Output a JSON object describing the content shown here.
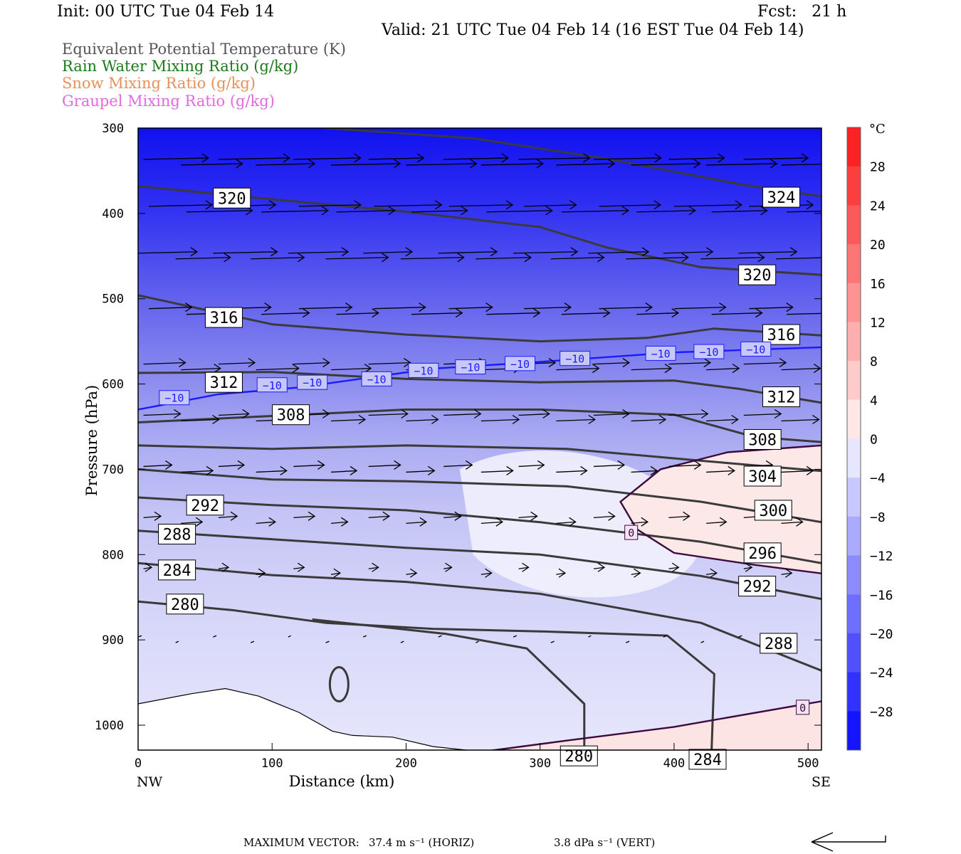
{
  "header": {
    "init": "Init: 00 UTC Tue 04 Feb 14",
    "fcst": "Fcst:   21 h",
    "valid": "Valid: 21 UTC Tue 04 Feb 14 (16 EST Tue 04 Feb 14)"
  },
  "legend": [
    {
      "label": "Equivalent Potential Temperature (K)",
      "color": "#555555"
    },
    {
      "label": "Rain Water Mixing Ratio (g/kg)",
      "color": "#1b7a1b"
    },
    {
      "label": "Snow Mixing Ratio (g/kg)",
      "color": "#e8915a"
    },
    {
      "label": "Graupel Mixing Ratio (g/kg)",
      "color": "#e06ae0"
    }
  ],
  "footer": {
    "max_vector_label": "MAXIMUM VECTOR:",
    "horiz": "37.4 m s⁻¹ (HORIZ)",
    "vert": "3.8 dPa s⁻¹ (VERT)"
  },
  "chart_data": {
    "type": "cross-section",
    "xlabel": "Distance (km)",
    "ylabel": "Pressure (hPa)",
    "xlim": [
      0,
      510
    ],
    "ylim": [
      1030,
      300
    ],
    "x_ticks": [
      0,
      100,
      200,
      300,
      400,
      500
    ],
    "y_ticks": [
      300,
      400,
      500,
      600,
      700,
      800,
      900,
      1000
    ],
    "x_left_label": "NW",
    "x_right_label": "SE",
    "colorbar": {
      "unit": "°C",
      "tick_labels": [
        "28",
        "24",
        "20",
        "16",
        "12",
        "8",
        "4",
        "0",
        "−4",
        "−8",
        "−12",
        "−16",
        "−20",
        "−24",
        "−28"
      ],
      "tick_values": [
        28,
        24,
        20,
        16,
        12,
        8,
        4,
        0,
        -4,
        -8,
        -12,
        -16,
        -20,
        -24,
        -28
      ],
      "range": [
        -32,
        32
      ]
    },
    "theta_e_contours": [
      {
        "value": 324,
        "points": [
          [
            140,
            300
          ],
          [
            250,
            312
          ],
          [
            350,
            336
          ],
          [
            450,
            366
          ],
          [
            510,
            380
          ]
        ],
        "labels": [
          {
            "x": 480,
            "p": 381,
            "text": "324"
          }
        ]
      },
      {
        "value": 320,
        "points": [
          [
            0,
            368
          ],
          [
            90,
            382
          ],
          [
            200,
            398
          ],
          [
            300,
            416
          ],
          [
            350,
            440
          ],
          [
            420,
            463
          ],
          [
            510,
            472
          ]
        ],
        "labels": [
          {
            "x": 70,
            "p": 382,
            "text": "320"
          },
          {
            "x": 462,
            "p": 472,
            "text": "320"
          }
        ]
      },
      {
        "value": 316,
        "points": [
          [
            0,
            496
          ],
          [
            100,
            530
          ],
          [
            200,
            542
          ],
          [
            300,
            550
          ],
          [
            380,
            546
          ],
          [
            430,
            535
          ],
          [
            510,
            543
          ]
        ],
        "labels": [
          {
            "x": 64,
            "p": 522,
            "text": "316"
          },
          {
            "x": 480,
            "p": 542,
            "text": "316"
          }
        ]
      },
      {
        "value": 312,
        "points": [
          [
            0,
            587
          ],
          [
            100,
            586
          ],
          [
            200,
            594
          ],
          [
            300,
            598
          ],
          [
            400,
            596
          ],
          [
            450,
            606
          ],
          [
            510,
            622
          ]
        ],
        "labels": [
          {
            "x": 64,
            "p": 598,
            "text": "312"
          },
          {
            "x": 480,
            "p": 615,
            "text": "312"
          }
        ]
      },
      {
        "value": 308,
        "points": [
          [
            0,
            645
          ],
          [
            120,
            636
          ],
          [
            200,
            630
          ],
          [
            300,
            630
          ],
          [
            400,
            636
          ],
          [
            460,
            662
          ],
          [
            510,
            668
          ]
        ],
        "labels": [
          {
            "x": 114,
            "p": 636,
            "text": "308"
          },
          {
            "x": 466,
            "p": 665,
            "text": "308"
          }
        ]
      },
      {
        "value": 304,
        "points": [
          [
            0,
            672
          ],
          [
            100,
            676
          ],
          [
            200,
            672
          ],
          [
            320,
            676
          ],
          [
            420,
            690
          ],
          [
            510,
            702
          ]
        ],
        "labels": [
          {
            "x": 466,
            "p": 708,
            "text": "304"
          }
        ]
      },
      {
        "value": 300,
        "points": [
          [
            0,
            700
          ],
          [
            100,
            712
          ],
          [
            200,
            714
          ],
          [
            320,
            720
          ],
          [
            420,
            738
          ],
          [
            510,
            762
          ]
        ],
        "labels": [
          {
            "x": 474,
            "p": 748,
            "text": "300"
          }
        ]
      },
      {
        "value": 296,
        "points": [
          [
            0,
            733
          ],
          [
            100,
            742
          ],
          [
            200,
            748
          ],
          [
            300,
            762
          ],
          [
            420,
            785
          ],
          [
            510,
            810
          ]
        ],
        "labels": [
          {
            "x": 466,
            "p": 798,
            "text": "296"
          }
        ]
      },
      {
        "value": 292,
        "points": [
          [
            0,
            772
          ],
          [
            100,
            782
          ],
          [
            200,
            792
          ],
          [
            300,
            800
          ],
          [
            420,
            825
          ],
          [
            510,
            852
          ]
        ],
        "labels": [
          {
            "x": 50,
            "p": 742,
            "text": "292"
          },
          {
            "x": 462,
            "p": 837,
            "text": "292"
          }
        ]
      },
      {
        "value": 288,
        "points": [
          [
            0,
            810
          ],
          [
            100,
            824
          ],
          [
            200,
            832
          ],
          [
            300,
            846
          ],
          [
            420,
            880
          ],
          [
            510,
            936
          ]
        ],
        "labels": [
          {
            "x": 29,
            "p": 776,
            "text": "288"
          },
          {
            "x": 478,
            "p": 904,
            "text": "288"
          }
        ]
      },
      {
        "value": 284,
        "points": [
          [
            0,
            855
          ],
          [
            70,
            865
          ],
          [
            140,
            880
          ],
          [
            220,
            887
          ],
          [
            300,
            890
          ],
          [
            395,
            895
          ],
          [
            430,
            940
          ],
          [
            428,
            1030
          ]
        ],
        "labels": [
          {
            "x": 29,
            "p": 818,
            "text": "284"
          },
          {
            "x": 425,
            "p": 1040,
            "text": "284"
          }
        ]
      },
      {
        "value": 280,
        "points": [
          [
            130,
            876
          ],
          [
            230,
            893
          ],
          [
            290,
            910
          ],
          [
            333,
            975
          ],
          [
            333,
            1030
          ]
        ],
        "labels": [
          {
            "x": 35,
            "p": 858,
            "text": "280"
          },
          {
            "x": 329,
            "p": 1036,
            "text": "280"
          }
        ]
      }
    ],
    "temp_contours": [
      {
        "value": -10,
        "color": "#1a1aff",
        "points": [
          [
            0,
            630
          ],
          [
            60,
            612
          ],
          [
            120,
            604
          ],
          [
            170,
            593
          ],
          [
            220,
            582
          ],
          [
            300,
            574
          ],
          [
            400,
            563
          ],
          [
            510,
            557
          ]
        ],
        "labels": [
          {
            "x": 27,
            "p": 616,
            "text": "−10"
          },
          {
            "x": 100,
            "p": 601,
            "text": "−10"
          },
          {
            "x": 130,
            "p": 598,
            "text": "−10"
          },
          {
            "x": 178,
            "p": 594,
            "text": "−10"
          },
          {
            "x": 213,
            "p": 584,
            "text": "−10"
          },
          {
            "x": 248,
            "p": 580,
            "text": "−10"
          },
          {
            "x": 285,
            "p": 576,
            "text": "−10"
          },
          {
            "x": 326,
            "p": 570,
            "text": "−10"
          },
          {
            "x": 390,
            "p": 564,
            "text": "−10"
          },
          {
            "x": 426,
            "p": 562,
            "text": "−10"
          },
          {
            "x": 461,
            "p": 559,
            "text": "−10"
          }
        ]
      },
      {
        "value": 0,
        "color": "#3d0a3d",
        "points": [
          [
            510,
            672
          ],
          [
            440,
            680
          ],
          [
            390,
            700
          ],
          [
            360,
            738
          ],
          [
            372,
            770
          ],
          [
            400,
            798
          ],
          [
            460,
            812
          ],
          [
            510,
            822
          ]
        ],
        "labels": [
          {
            "x": 368,
            "p": 774,
            "text": "0"
          }
        ]
      },
      {
        "value": 0,
        "color": "#3d0a3d",
        "points": [
          [
            262,
            1030
          ],
          [
            320,
            1018
          ],
          [
            400,
            1002
          ],
          [
            510,
            972
          ]
        ],
        "labels": [
          {
            "x": 496,
            "p": 979,
            "text": "0"
          }
        ]
      }
    ],
    "terrain_profile": [
      [
        0,
        975
      ],
      [
        40,
        963
      ],
      [
        65,
        957
      ],
      [
        90,
        966
      ],
      [
        120,
        985
      ],
      [
        145,
        1007
      ],
      [
        160,
        1012
      ],
      [
        190,
        1014
      ],
      [
        220,
        1025
      ],
      [
        250,
        1030
      ]
    ]
  }
}
